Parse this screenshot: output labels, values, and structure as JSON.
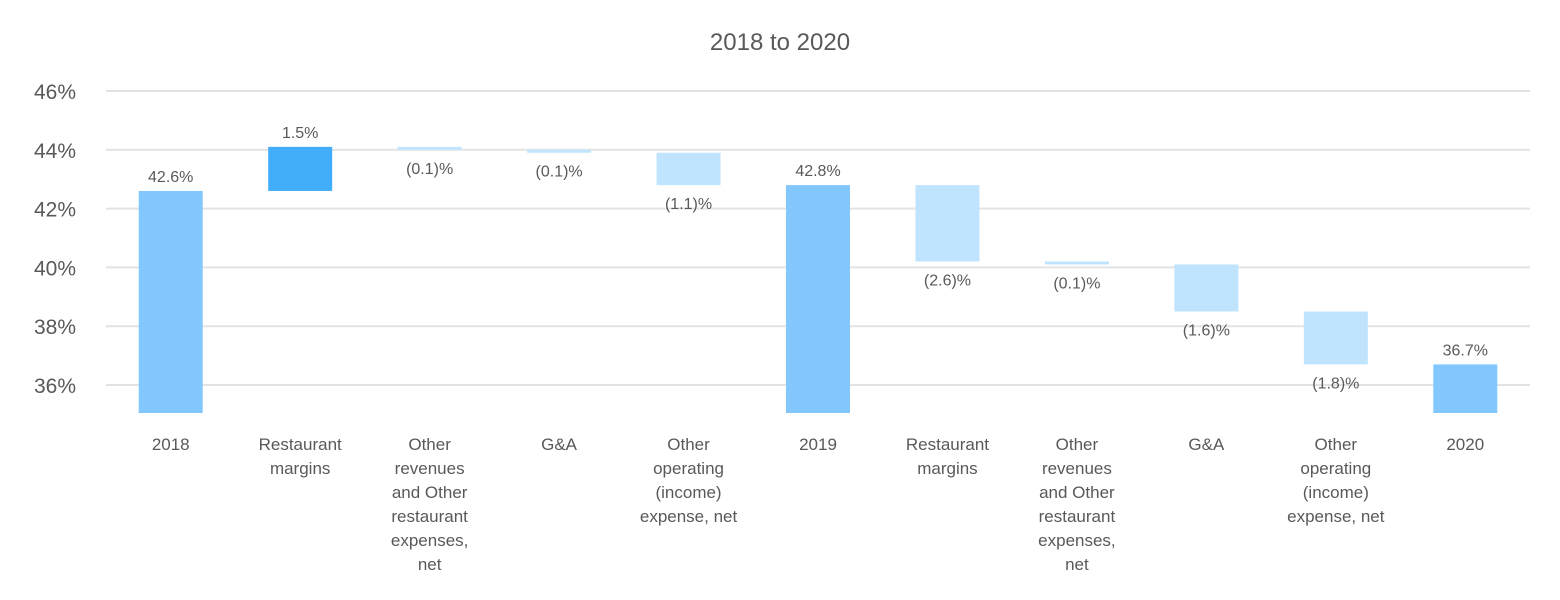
{
  "chart_data": {
    "type": "bar",
    "subtype": "waterfall",
    "title": "2018 to 2020",
    "xlabel": "",
    "ylabel": "",
    "ylim": [
      35,
      47
    ],
    "yticks": [
      36,
      38,
      40,
      42,
      44,
      46
    ],
    "ytick_labels": [
      "36%",
      "38%",
      "40%",
      "42%",
      "44%",
      "46%"
    ],
    "grid": true,
    "colors": {
      "total": "#82c8ff",
      "increase": "#42adfb",
      "decrease": "#c0e4fd",
      "grid": "#e3e3e3",
      "text": "#595959"
    },
    "bars": [
      {
        "category": [
          "2018"
        ],
        "kind": "total",
        "start": 35,
        "end": 42.6,
        "label": "42.6%",
        "label_pos": "above"
      },
      {
        "category": [
          "Restaurant",
          "margins"
        ],
        "kind": "increase",
        "start": 42.6,
        "end": 44.1,
        "label": "1.5%",
        "label_pos": "above"
      },
      {
        "category": [
          "Other",
          "revenues",
          "and Other",
          "restaurant",
          "expenses,",
          "net"
        ],
        "kind": "decrease",
        "start": 44.1,
        "end": 44.0,
        "label": "(0.1)%",
        "label_pos": "below"
      },
      {
        "category": [
          "G&A"
        ],
        "kind": "decrease",
        "start": 44.0,
        "end": 43.9,
        "label": "(0.1)%",
        "label_pos": "below"
      },
      {
        "category": [
          "Other",
          "operating",
          "(income)",
          "expense, net"
        ],
        "kind": "decrease",
        "start": 43.9,
        "end": 42.8,
        "label": "(1.1)%",
        "label_pos": "below"
      },
      {
        "category": [
          "2019"
        ],
        "kind": "total",
        "start": 35,
        "end": 42.8,
        "label": "42.8%",
        "label_pos": "above"
      },
      {
        "category": [
          "Restaurant",
          "margins"
        ],
        "kind": "decrease",
        "start": 42.8,
        "end": 40.2,
        "label": "(2.6)%",
        "label_pos": "below"
      },
      {
        "category": [
          "Other",
          "revenues",
          "and Other",
          "restaurant",
          "expenses,",
          "net"
        ],
        "kind": "decrease",
        "start": 40.2,
        "end": 40.1,
        "label": "(0.1)%",
        "label_pos": "below"
      },
      {
        "category": [
          "G&A"
        ],
        "kind": "decrease",
        "start": 40.1,
        "end": 38.5,
        "label": "(1.6)%",
        "label_pos": "below"
      },
      {
        "category": [
          "Other",
          "operating",
          "(income)",
          "expense, net"
        ],
        "kind": "decrease",
        "start": 38.5,
        "end": 36.7,
        "label": "(1.8)%",
        "label_pos": "below"
      },
      {
        "category": [
          "2020"
        ],
        "kind": "total",
        "start": 35,
        "end": 36.7,
        "label": "36.7%",
        "label_pos": "above"
      }
    ]
  }
}
